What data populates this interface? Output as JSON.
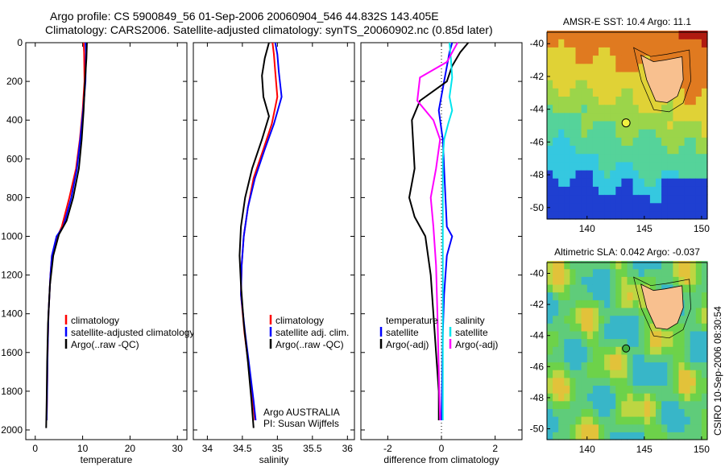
{
  "header": {
    "line1": "Argo profile: CS 5900849_56 01-Sep-2006 20060904_546 44.832S 143.405E",
    "line2": "Climatology: CARS2006. Satellite-adjusted climatology: synTS_20060902.nc (0.85d later)"
  },
  "side_text": "CSIRO 10-Sep-2006 08:30:54",
  "chart_data": [
    {
      "type": "line",
      "id": "temperature",
      "xlabel": "temperature",
      "ylabel": "",
      "xlim": [
        -2,
        32
      ],
      "ylim": [
        2050,
        0
      ],
      "xticks": [
        0,
        10,
        20,
        30
      ],
      "yticks": [
        0,
        200,
        400,
        600,
        800,
        1000,
        1200,
        1400,
        1600,
        1800,
        2000
      ],
      "legend": [
        "climatology",
        "satellite-adjusted climatology",
        "Argo(..raw -QC)"
      ],
      "series": [
        {
          "name": "climatology",
          "color": "#ff0000",
          "x": [
            10.2,
            10.3,
            10.4,
            10.0,
            9.4,
            8.6,
            7.2,
            5.6,
            4.7,
            3.5,
            3.2,
            2.8,
            2.6,
            2.5,
            2.4
          ],
          "y": [
            0,
            50,
            200,
            350,
            500,
            650,
            800,
            950,
            1000,
            1100,
            1200,
            1400,
            1600,
            1800,
            1950
          ]
        },
        {
          "name": "satellite-adjusted climatology",
          "color": "#0000ff",
          "x": [
            10.6,
            10.7,
            10.6,
            10.1,
            9.5,
            8.8,
            7.6,
            5.9,
            4.5,
            3.5,
            3.2,
            2.8,
            2.6,
            2.5,
            2.4
          ],
          "y": [
            0,
            50,
            200,
            350,
            500,
            650,
            800,
            950,
            1000,
            1100,
            1200,
            1400,
            1600,
            1800,
            1950
          ]
        },
        {
          "name": "Argo(..raw -QC)",
          "color": "#000000",
          "x": [
            10.9,
            10.8,
            10.5,
            10.2,
            9.8,
            9.2,
            8.0,
            6.6,
            5.0,
            3.8,
            3.1,
            2.7,
            2.5,
            2.4,
            2.3
          ],
          "y": [
            0,
            80,
            200,
            350,
            500,
            650,
            800,
            920,
            990,
            1100,
            1250,
            1450,
            1650,
            1850,
            1990
          ]
        }
      ]
    },
    {
      "type": "line",
      "id": "salinity",
      "xlabel": "salinity",
      "ylabel": "",
      "xlim": [
        33.8,
        36.1
      ],
      "ylim": [
        2050,
        0
      ],
      "xticks": [
        34,
        34.5,
        35,
        35.5,
        36
      ],
      "legend": [
        "climatology",
        "satellite adj. clim.",
        "Argo(..raw -QC)"
      ],
      "series": [
        {
          "name": "climatology",
          "color": "#ff0000",
          "x": [
            34.93,
            34.95,
            34.97,
            35.0,
            34.92,
            34.8,
            34.66,
            34.58,
            34.52,
            34.49,
            34.48,
            34.53,
            34.6,
            34.65,
            34.68
          ],
          "y": [
            0,
            60,
            150,
            280,
            420,
            550,
            700,
            850,
            1000,
            1150,
            1300,
            1500,
            1700,
            1850,
            1950
          ]
        },
        {
          "name": "satellite adj. clim.",
          "color": "#0000ff",
          "x": [
            34.97,
            35.0,
            35.02,
            35.06,
            34.95,
            34.82,
            34.68,
            34.58,
            34.52,
            34.49,
            34.48,
            34.54,
            34.61,
            34.66,
            34.69
          ],
          "y": [
            0,
            60,
            150,
            280,
            420,
            550,
            700,
            850,
            1000,
            1150,
            1300,
            1500,
            1700,
            1850,
            1950
          ]
        },
        {
          "name": "Argo(..raw -QC)",
          "color": "#000000",
          "x": [
            34.88,
            34.82,
            34.78,
            34.8,
            34.88,
            34.78,
            34.64,
            34.54,
            34.48,
            34.46,
            34.48,
            34.52,
            34.58,
            34.63,
            34.66
          ],
          "y": [
            0,
            80,
            170,
            280,
            380,
            500,
            650,
            800,
            950,
            1100,
            1250,
            1450,
            1650,
            1850,
            1990
          ]
        }
      ],
      "annotations": [
        "Argo AUSTRALIA",
        "PI: Susan Wijffels"
      ]
    },
    {
      "type": "line",
      "id": "difference",
      "xlabel": "difference from climatology",
      "ylabel": "",
      "xlim": [
        -3,
        3
      ],
      "ylim": [
        2050,
        0
      ],
      "xticks": [
        -2,
        0,
        2
      ],
      "legend_left": {
        "title": "temperature",
        "entries": [
          "satellite",
          "Argo(-adj)"
        ]
      },
      "legend_right": {
        "title": "salinity",
        "entries": [
          "satellite",
          "Argo(-adj)"
        ]
      },
      "series": [
        {
          "name": "temperature satellite",
          "color": "#0000ff",
          "x": [
            0.4,
            0.3,
            0.1,
            -0.1,
            0.05,
            0.1,
            0.15,
            0.2,
            0.4,
            0.2,
            0.1,
            0.05,
            0.02,
            0.0
          ],
          "y": [
            0,
            50,
            200,
            350,
            500,
            650,
            800,
            950,
            1000,
            1100,
            1300,
            1500,
            1800,
            1950
          ]
        },
        {
          "name": "temperature Argo(-adj)",
          "color": "#000000",
          "x": [
            1.0,
            0.7,
            0.4,
            0.2,
            -0.8,
            -1.1,
            -1.0,
            -1.2,
            -1.0,
            -0.6,
            -0.4,
            -0.3,
            -0.2,
            -0.1,
            -0.1
          ],
          "y": [
            0,
            50,
            120,
            200,
            300,
            400,
            650,
            800,
            900,
            1000,
            1200,
            1400,
            1600,
            1800,
            1950
          ]
        },
        {
          "name": "salinity satellite",
          "color": "#00e5ee",
          "x": [
            0.3,
            0.35,
            0.4,
            0.3,
            0.4,
            0.25,
            0.1,
            0.05,
            0.05,
            0.05,
            0.05,
            0.05
          ],
          "y": [
            0,
            80,
            180,
            280,
            350,
            420,
            500,
            600,
            800,
            1200,
            1600,
            1950
          ]
        },
        {
          "name": "salinity Argo(-adj)",
          "color": "#ff00ff",
          "x": [
            0.6,
            0.2,
            -0.8,
            -0.9,
            -0.3,
            -0.05,
            -0.2,
            -0.4,
            -0.3,
            -0.2,
            -0.15,
            -0.1,
            -0.05
          ],
          "y": [
            0,
            100,
            180,
            300,
            400,
            500,
            650,
            800,
            950,
            1150,
            1400,
            1700,
            1950
          ]
        }
      ]
    },
    {
      "type": "heatmap",
      "id": "sst-map",
      "title": "AMSR-E SST: 10.4 Argo: 11.1",
      "xlim": [
        136.5,
        150.5
      ],
      "ylim": [
        -50.7,
        -39.3
      ],
      "xticks": [
        140,
        145,
        150
      ],
      "yticks": [
        -40,
        -42,
        -44,
        -46,
        -48,
        -50
      ],
      "argo_position": {
        "lon": 143.405,
        "lat": -44.832
      }
    },
    {
      "type": "heatmap",
      "id": "sla-map",
      "title": "Altimetric SLA: 0.042 Argo: -0.037",
      "xlim": [
        136.5,
        150.5
      ],
      "ylim": [
        -50.7,
        -39.3
      ],
      "xticks": [
        140,
        145,
        150
      ],
      "yticks": [
        -40,
        -42,
        -44,
        -46,
        -48,
        -50
      ],
      "argo_position": {
        "lon": 143.405,
        "lat": -44.832
      }
    }
  ]
}
